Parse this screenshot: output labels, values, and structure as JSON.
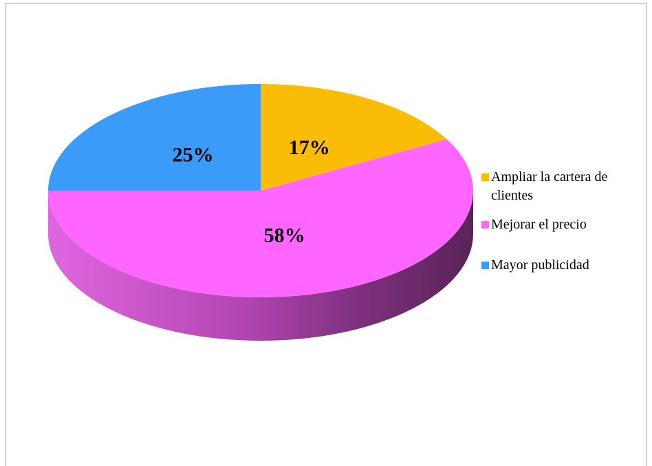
{
  "chart_data": {
    "type": "pie",
    "categories": [
      "Ampliar la cartera de clientes",
      "Mejorar el precio",
      "Mayor publicidad"
    ],
    "values": [
      17,
      58,
      25
    ],
    "value_labels": [
      "17%",
      "58%",
      "25%"
    ],
    "colors": [
      "#fbbc05",
      "#ff66ff",
      "#3a9bf8"
    ],
    "legend": "right"
  }
}
